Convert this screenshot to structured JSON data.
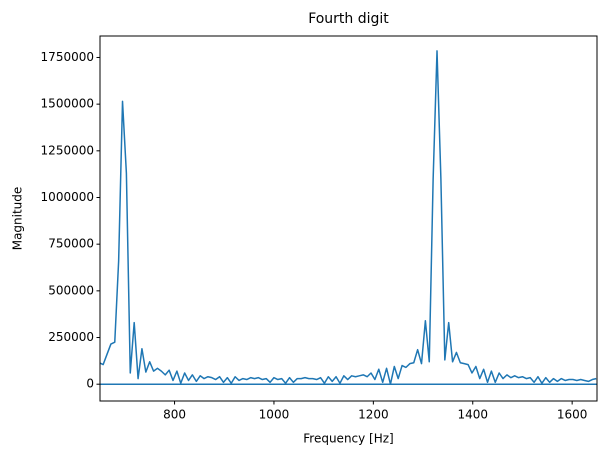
{
  "chart_data": {
    "type": "line",
    "title": "Fourth digit",
    "xlabel": "Frequency [Hz]",
    "ylabel": "Magnitude",
    "xlim": [
      650,
      1650
    ],
    "ylim": [
      -90000,
      1865000
    ],
    "xticks": [
      800,
      1000,
      1200,
      1400,
      1600
    ],
    "yticks": [
      0,
      250000,
      500000,
      750000,
      1000000,
      1250000,
      1500000,
      1750000
    ],
    "series": [
      {
        "color": "#1f77b4",
        "x": [
          648.4,
          656.3,
          664.1,
          671.9,
          679.7,
          687.5,
          695.3,
          703.1,
          710.9,
          718.8,
          726.6,
          734.4,
          742.2,
          750.0,
          757.8,
          765.6,
          773.4,
          781.3,
          789.1,
          796.9,
          804.7,
          812.5,
          820.3,
          828.1,
          835.9,
          843.8,
          851.6,
          859.4,
          867.2,
          875.0,
          882.8,
          890.6,
          898.4,
          906.3,
          914.1,
          921.9,
          929.7,
          937.5,
          945.3,
          953.1,
          960.9,
          968.8,
          976.6,
          984.4,
          992.2,
          1000.0,
          1007.8,
          1015.6,
          1023.4,
          1031.3,
          1039.1,
          1046.9,
          1054.7,
          1062.5,
          1070.3,
          1078.1,
          1085.9,
          1093.8,
          1101.6,
          1109.4,
          1117.2,
          1125.0,
          1132.8,
          1140.6,
          1148.4,
          1156.3,
          1164.1,
          1171.9,
          1179.7,
          1187.5,
          1195.3,
          1203.1,
          1210.9,
          1218.8,
          1226.6,
          1234.4,
          1242.2,
          1250.0,
          1257.8,
          1265.6,
          1273.4,
          1281.3,
          1289.1,
          1296.9,
          1304.7,
          1312.5,
          1320.3,
          1328.1,
          1335.9,
          1343.8,
          1351.6,
          1359.4,
          1367.2,
          1375.0,
          1382.8,
          1390.6,
          1398.4,
          1406.3,
          1414.1,
          1421.9,
          1429.7,
          1437.5,
          1445.3,
          1453.1,
          1460.9,
          1468.8,
          1476.6,
          1484.4,
          1492.2,
          1500.0,
          1507.8,
          1515.6,
          1523.4,
          1531.3,
          1539.1,
          1546.9,
          1554.7,
          1562.5,
          1570.3,
          1578.1,
          1585.9,
          1593.8,
          1601.6,
          1609.4,
          1617.2,
          1625.0,
          1632.8,
          1640.6,
          1648.4
        ],
        "values": [
          115000,
          105000,
          160000,
          215000,
          225000,
          660000,
          1515000,
          1130000,
          60000,
          330000,
          30000,
          190000,
          65000,
          120000,
          70000,
          85000,
          70000,
          50000,
          75000,
          20000,
          70000,
          5000,
          60000,
          20000,
          50000,
          15000,
          45000,
          30000,
          40000,
          35000,
          25000,
          40000,
          10000,
          35000,
          5000,
          40000,
          20000,
          30000,
          25000,
          35000,
          30000,
          35000,
          25000,
          30000,
          10000,
          35000,
          25000,
          30000,
          5000,
          35000,
          10000,
          30000,
          30000,
          35000,
          30000,
          30000,
          25000,
          35000,
          5000,
          40000,
          15000,
          40000,
          5000,
          45000,
          25000,
          45000,
          40000,
          45000,
          50000,
          40000,
          60000,
          25000,
          80000,
          10000,
          85000,
          0,
          95000,
          30000,
          100000,
          90000,
          110000,
          115000,
          185000,
          110000,
          340000,
          120000,
          1100000,
          1785000,
          1100000,
          130000,
          330000,
          120000,
          170000,
          115000,
          110000,
          105000,
          60000,
          95000,
          30000,
          80000,
          10000,
          70000,
          10000,
          60000,
          30000,
          50000,
          35000,
          45000,
          35000,
          40000,
          30000,
          35000,
          10000,
          40000,
          5000,
          35000,
          10000,
          30000,
          15000,
          30000,
          20000,
          25000,
          25000,
          20000,
          25000,
          20000,
          15000,
          25000,
          30000
        ]
      },
      {
        "color": "#1f77b4",
        "x": [
          650,
          1650
        ],
        "values": [
          0,
          0
        ]
      }
    ]
  }
}
